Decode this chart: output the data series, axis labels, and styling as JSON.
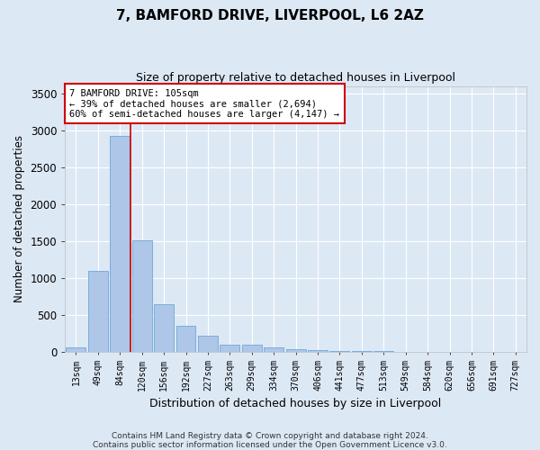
{
  "title1": "7, BAMFORD DRIVE, LIVERPOOL, L6 2AZ",
  "title2": "Size of property relative to detached houses in Liverpool",
  "xlabel": "Distribution of detached houses by size in Liverpool",
  "ylabel": "Number of detached properties",
  "categories": [
    "13sqm",
    "49sqm",
    "84sqm",
    "120sqm",
    "156sqm",
    "192sqm",
    "227sqm",
    "263sqm",
    "299sqm",
    "334sqm",
    "370sqm",
    "406sqm",
    "441sqm",
    "477sqm",
    "513sqm",
    "549sqm",
    "584sqm",
    "620sqm",
    "656sqm",
    "691sqm",
    "727sqm"
  ],
  "values": [
    55,
    1100,
    2920,
    1510,
    645,
    345,
    215,
    100,
    90,
    55,
    35,
    20,
    10,
    8,
    5,
    3,
    2,
    1,
    0,
    0,
    0
  ],
  "bar_color": "#aec6e8",
  "bar_edge_color": "#5a9fd4",
  "bg_color": "#dde8f5",
  "grid_color": "#ffffff",
  "red_line_x": 2.5,
  "annotation_line1": "7 BAMFORD DRIVE: 105sqm",
  "annotation_line2": "← 39% of detached houses are smaller (2,694)",
  "annotation_line3": "60% of semi-detached houses are larger (4,147) →",
  "annotation_box_color": "#ffffff",
  "annotation_border_color": "#cc0000",
  "ylim": [
    0,
    3600
  ],
  "yticks": [
    0,
    500,
    1000,
    1500,
    2000,
    2500,
    3000,
    3500
  ],
  "footnote1": "Contains HM Land Registry data © Crown copyright and database right 2024.",
  "footnote2": "Contains public sector information licensed under the Open Government Licence v3.0."
}
